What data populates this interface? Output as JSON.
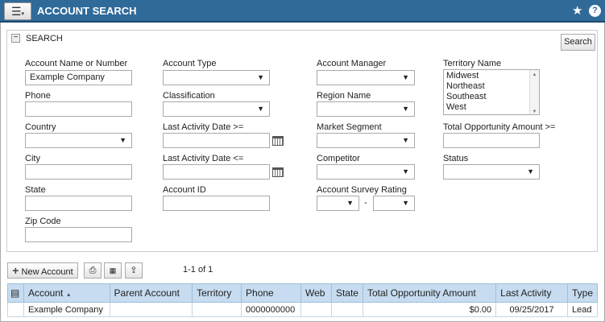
{
  "header": {
    "title": "ACCOUNT SEARCH",
    "menu_icon": "hamburger-menu-icon",
    "star_icon": "star-icon",
    "help_icon": "help-icon"
  },
  "search": {
    "section_title": "SEARCH",
    "search_button": "Search",
    "fields": {
      "account_name": {
        "label": "Account Name or Number",
        "value": "Example Company"
      },
      "account_type": {
        "label": "Account Type",
        "value": ""
      },
      "account_manager": {
        "label": "Account Manager",
        "value": ""
      },
      "territory": {
        "label": "Territory Name",
        "options": [
          "Midwest",
          "Northeast",
          "Southeast",
          "West"
        ]
      },
      "phone": {
        "label": "Phone",
        "value": ""
      },
      "classification": {
        "label": "Classification",
        "value": ""
      },
      "region": {
        "label": "Region Name",
        "value": ""
      },
      "country": {
        "label": "Country",
        "value": ""
      },
      "last_activity_from": {
        "label": "Last Activity Date >=",
        "value": ""
      },
      "market_segment": {
        "label": "Market Segment",
        "value": ""
      },
      "total_opp": {
        "label": "Total Opportunity Amount >=",
        "value": ""
      },
      "city": {
        "label": "City",
        "value": ""
      },
      "last_activity_to": {
        "label": "Last Activity Date <=",
        "value": ""
      },
      "competitor": {
        "label": "Competitor",
        "value": ""
      },
      "status": {
        "label": "Status",
        "value": ""
      },
      "state": {
        "label": "State",
        "value": ""
      },
      "account_id": {
        "label": "Account ID",
        "value": ""
      },
      "survey_rating": {
        "label": "Account Survey Rating",
        "separator": "-"
      },
      "zip": {
        "label": "Zip Code",
        "value": ""
      }
    }
  },
  "toolbar": {
    "new_account": "New Account",
    "pagination": "1-1 of 1"
  },
  "grid": {
    "columns": [
      "Account",
      "Parent Account",
      "Territory",
      "Phone",
      "Web",
      "State",
      "Total Opportunity Amount",
      "Last Activity",
      "Type"
    ],
    "sort_indicator": "▲",
    "rows": [
      [
        "Example Company",
        "",
        "",
        "0000000000",
        "",
        "",
        "$0.00",
        "09/25/2017",
        "Lead"
      ]
    ]
  }
}
